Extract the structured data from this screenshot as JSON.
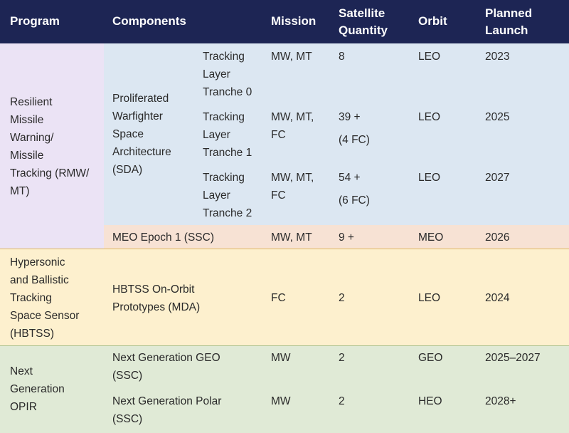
{
  "colors": {
    "header_bg": "#1d2554",
    "header_text": "#ffffff",
    "program_rmw_bg": "#ebe3f5",
    "sda_bg": "#dce7f2",
    "meo_bg": "#f7e2d4",
    "hbtss_bg": "#fdf0ce",
    "opir_bg": "#e0ead6",
    "text": "#2a2a2a"
  },
  "header": {
    "program": "Program",
    "components": "Components",
    "mission": "Mission",
    "satellite_quantity": [
      "Satellite",
      "Quantity"
    ],
    "orbit": "Orbit",
    "planned_launch": [
      "Planned",
      "Launch"
    ]
  },
  "groups": [
    {
      "program": [
        "Resilient",
        "Missile",
        "Warning/",
        "Missile",
        "Tracking (RMW/",
        "MT)"
      ],
      "subgroups": [
        {
          "component": [
            "Proliferated",
            "Warfighter",
            "Space",
            "Architecture",
            "(SDA)"
          ],
          "rows": [
            {
              "subcomponent": [
                "Tracking",
                "Layer",
                "Tranche 0"
              ],
              "mission": [
                "MW, MT"
              ],
              "quantity": [
                "8"
              ],
              "orbit": "LEO",
              "launch": "2023"
            },
            {
              "subcomponent": [
                "Tracking",
                "Layer",
                "Tranche 1"
              ],
              "mission": [
                "MW, MT,",
                "FC"
              ],
              "quantity": [
                "39 +",
                "(4 FC)"
              ],
              "orbit": "LEO",
              "launch": "2025"
            },
            {
              "subcomponent": [
                "Tracking",
                "Layer",
                "Tranche 2"
              ],
              "mission": [
                "MW, MT,",
                "FC"
              ],
              "quantity": [
                "54 +",
                "(6 FC)"
              ],
              "orbit": "LEO",
              "launch": "2027"
            }
          ]
        },
        {
          "component": [
            "MEO Epoch 1 (SSC)"
          ],
          "rows": [
            {
              "mission": [
                "MW, MT"
              ],
              "quantity": [
                "9 +"
              ],
              "orbit": "MEO",
              "launch": "2026"
            }
          ]
        }
      ]
    },
    {
      "program": [
        "Hypersonic",
        "and Ballistic",
        "Tracking",
        "Space Sensor",
        "(HBTSS)"
      ],
      "subgroups": [
        {
          "component": [
            "HBTSS On-Orbit",
            "Prototypes (MDA)"
          ],
          "rows": [
            {
              "mission": [
                "FC"
              ],
              "quantity": [
                "2"
              ],
              "orbit": "LEO",
              "launch": "2024"
            }
          ]
        }
      ]
    },
    {
      "program": [
        "Next",
        "Generation",
        "OPIR"
      ],
      "subgroups": [
        {
          "component": [
            "Next Generation GEO",
            "(SSC)"
          ],
          "rows": [
            {
              "mission": [
                "MW"
              ],
              "quantity": [
                "2"
              ],
              "orbit": "GEO",
              "launch": "2025–2027"
            }
          ]
        },
        {
          "component": [
            "Next Generation Polar",
            "(SSC)"
          ],
          "rows": [
            {
              "mission": [
                "MW"
              ],
              "quantity": [
                "2"
              ],
              "orbit": "HEO",
              "launch": "2028+"
            }
          ]
        }
      ]
    }
  ]
}
